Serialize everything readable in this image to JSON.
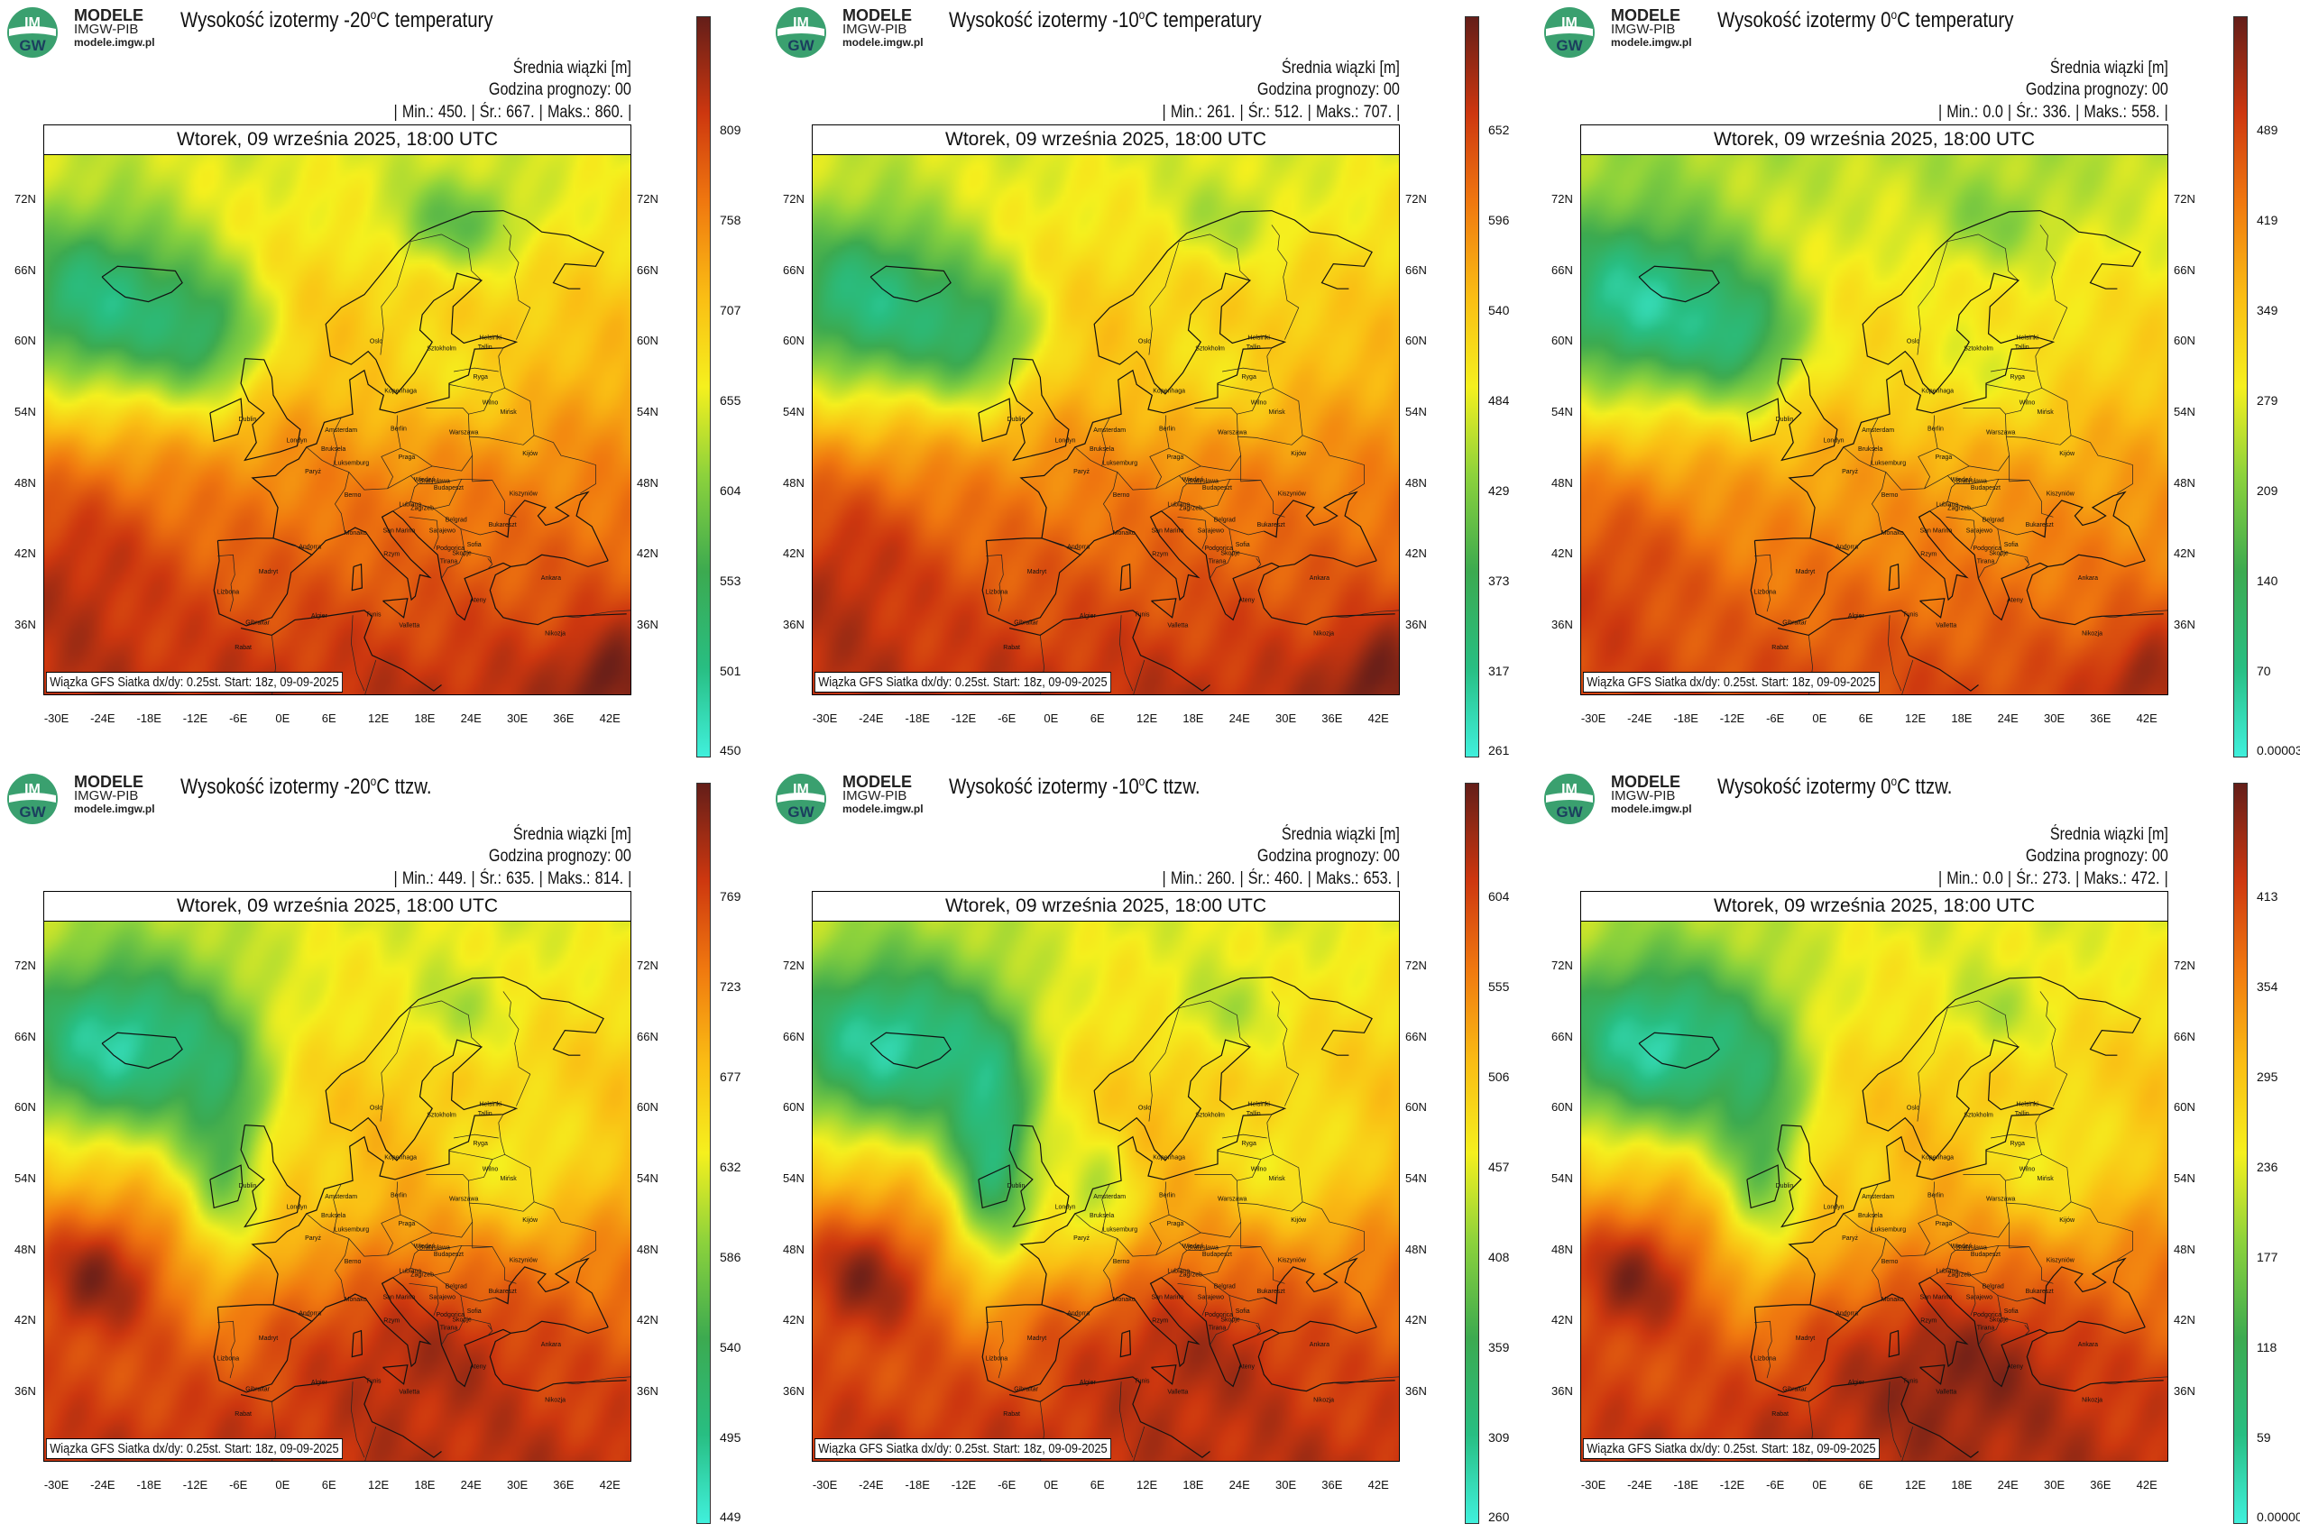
{
  "logo": {
    "line1": "MODELE",
    "line2": "IMGW-PIB",
    "line3": "modele.imgw.pl",
    "mark": "IM GW"
  },
  "common": {
    "info_line1": "Średnia wiązki [m]",
    "info_line2": "Godzina prognozy: 00",
    "date": "Wtorek, 09 września 2025, 18:00 UTC",
    "footer": "Wiązka GFS Siatka dx/dy: 0.25st. Start: 18z, 09-09-2025",
    "min_label": "Min.:",
    "mean_label": "Śr.:",
    "max_label": "Maks.:"
  },
  "lon_ticks": [
    "-30E",
    "-24E",
    "-18E",
    "-12E",
    "-6E",
    "0E",
    "6E",
    "12E",
    "18E",
    "24E",
    "30E",
    "36E",
    "42E"
  ],
  "lat_ticks": [
    "72N",
    "66N",
    "60N",
    "54N",
    "48N",
    "42N",
    "36N"
  ],
  "cities": [
    {
      "name": "Oslo",
      "lon": 10.7,
      "lat": 59.9
    },
    {
      "name": "Sztokholm",
      "lon": 18.1,
      "lat": 59.3
    },
    {
      "name": "Helsinki",
      "lon": 24.9,
      "lat": 60.2
    },
    {
      "name": "Tallin",
      "lon": 24.7,
      "lat": 59.4
    },
    {
      "name": "Ryga",
      "lon": 24.1,
      "lat": 56.9
    },
    {
      "name": "Kopenhaga",
      "lon": 12.6,
      "lat": 55.7
    },
    {
      "name": "Wilno",
      "lon": 25.3,
      "lat": 54.7
    },
    {
      "name": "Mińsk",
      "lon": 27.6,
      "lat": 53.9
    },
    {
      "name": "Dublin",
      "lon": -6.3,
      "lat": 53.3
    },
    {
      "name": "Londyn",
      "lon": -0.1,
      "lat": 51.5
    },
    {
      "name": "Amsterdam",
      "lon": 4.9,
      "lat": 52.4
    },
    {
      "name": "Berlin",
      "lon": 13.4,
      "lat": 52.5
    },
    {
      "name": "Warszawa",
      "lon": 21.0,
      "lat": 52.2
    },
    {
      "name": "Bruksela",
      "lon": 4.4,
      "lat": 50.8
    },
    {
      "name": "Luksemburg",
      "lon": 6.1,
      "lat": 49.6
    },
    {
      "name": "Praga",
      "lon": 14.4,
      "lat": 50.1
    },
    {
      "name": "Kijów",
      "lon": 30.5,
      "lat": 50.4
    },
    {
      "name": "Paryż",
      "lon": 2.3,
      "lat": 48.9
    },
    {
      "name": "Wiedeń",
      "lon": 16.4,
      "lat": 48.2
    },
    {
      "name": "Bratysława",
      "lon": 17.1,
      "lat": 48.1
    },
    {
      "name": "Budapeszt",
      "lon": 19.0,
      "lat": 47.5
    },
    {
      "name": "Kiszyniów",
      "lon": 28.8,
      "lat": 47.0
    },
    {
      "name": "Berno",
      "lon": 7.4,
      "lat": 46.9
    },
    {
      "name": "Lublana",
      "lon": 14.5,
      "lat": 46.1
    },
    {
      "name": "Zagrzeb",
      "lon": 16.0,
      "lat": 45.8
    },
    {
      "name": "Belgrad",
      "lon": 20.5,
      "lat": 44.8
    },
    {
      "name": "Bukareszt",
      "lon": 26.1,
      "lat": 44.4
    },
    {
      "name": "Sarajewo",
      "lon": 18.4,
      "lat": 43.9
    },
    {
      "name": "Sofia",
      "lon": 23.3,
      "lat": 42.7
    },
    {
      "name": "San Marino",
      "lon": 12.4,
      "lat": 43.9
    },
    {
      "name": "Andorra",
      "lon": 1.5,
      "lat": 42.5
    },
    {
      "name": "Monako",
      "lon": 7.4,
      "lat": 43.7
    },
    {
      "name": "Podgorica",
      "lon": 19.3,
      "lat": 42.4
    },
    {
      "name": "Skopje",
      "lon": 21.4,
      "lat": 42.0
    },
    {
      "name": "Tirana",
      "lon": 19.8,
      "lat": 41.3
    },
    {
      "name": "Rzym",
      "lon": 12.5,
      "lat": 41.9
    },
    {
      "name": "Madryt",
      "lon": -3.7,
      "lat": 40.4
    },
    {
      "name": "Ankara",
      "lon": 32.9,
      "lat": 39.9
    },
    {
      "name": "Lizbona",
      "lon": -9.1,
      "lat": 38.7
    },
    {
      "name": "Ateny",
      "lon": 23.7,
      "lat": 38.0
    },
    {
      "name": "Algier",
      "lon": 3.1,
      "lat": 36.7
    },
    {
      "name": "Tunis",
      "lon": 10.2,
      "lat": 36.8
    },
    {
      "name": "Gibraltar",
      "lon": -5.4,
      "lat": 36.1
    },
    {
      "name": "Valletta",
      "lon": 14.5,
      "lat": 35.9
    },
    {
      "name": "Nikozja",
      "lon": 33.4,
      "lat": 35.2
    },
    {
      "name": "Rabat",
      "lon": -6.8,
      "lat": 34.0
    }
  ],
  "panels": [
    {
      "title_pre": "Wysokość izotermy -20",
      "title_deg": "o",
      "title_post": "C temperatury",
      "min": "450.",
      "mean": "667.",
      "max": "860.",
      "colorbar_ticks": [
        "809",
        "758",
        "707",
        "655",
        "604",
        "553",
        "501",
        "450"
      ],
      "field": "t20"
    },
    {
      "title_pre": "Wysokość izotermy -10",
      "title_deg": "o",
      "title_post": "C temperatury",
      "min": "261.",
      "mean": "512.",
      "max": "707.",
      "colorbar_ticks": [
        "652",
        "596",
        "540",
        "484",
        "429",
        "373",
        "317",
        "261"
      ],
      "field": "t10"
    },
    {
      "title_pre": "Wysokość izotermy 0",
      "title_deg": "o",
      "title_post": "C temperatury",
      "min": "0.0",
      "mean": "336.",
      "max": "558.",
      "colorbar_ticks": [
        "489",
        "419",
        "349",
        "279",
        "209",
        "140",
        "70",
        "0.00003"
      ],
      "field": "t0"
    },
    {
      "title_pre": "Wysokość izotermy -20",
      "title_deg": "o",
      "title_post": "C ttzw.",
      "min": "449.",
      "mean": "635.",
      "max": "814.",
      "colorbar_ticks": [
        "769",
        "723",
        "677",
        "632",
        "586",
        "540",
        "495",
        "449"
      ],
      "field": "w20"
    },
    {
      "title_pre": "Wysokość izotermy -10",
      "title_deg": "o",
      "title_post": "C ttzw.",
      "min": "260.",
      "mean": "460.",
      "max": "653.",
      "colorbar_ticks": [
        "604",
        "555",
        "506",
        "457",
        "408",
        "359",
        "309",
        "260"
      ],
      "field": "w10"
    },
    {
      "title_pre": "Wysokość izotermy 0",
      "title_deg": "o",
      "title_post": "C ttzw.",
      "min": "0.0",
      "mean": "273.",
      "max": "472.",
      "colorbar_ticks": [
        "413",
        "354",
        "295",
        "236",
        "177",
        "118",
        "59",
        "0.00000"
      ],
      "field": "w0"
    }
  ],
  "chart_data": [
    {
      "type": "heatmap",
      "title": "Wysokość izotermy -20°C temperatury",
      "units": "m",
      "lon_range": [
        -30,
        45
      ],
      "lat_range": [
        30,
        75
      ],
      "value_range": [
        450,
        860
      ],
      "min": 450,
      "mean": 667,
      "max": 860
    },
    {
      "type": "heatmap",
      "title": "Wysokość izotermy -10°C temperatury",
      "units": "m",
      "lon_range": [
        -30,
        45
      ],
      "lat_range": [
        30,
        75
      ],
      "value_range": [
        261,
        707
      ],
      "min": 261,
      "mean": 512,
      "max": 707
    },
    {
      "type": "heatmap",
      "title": "Wysokość izotermy 0°C temperatury",
      "units": "m",
      "lon_range": [
        -30,
        45
      ],
      "lat_range": [
        30,
        75
      ],
      "value_range": [
        0,
        558
      ],
      "min": 0.0,
      "mean": 336,
      "max": 558
    },
    {
      "type": "heatmap",
      "title": "Wysokość izotermy -20°C ttzw.",
      "units": "m",
      "lon_range": [
        -30,
        45
      ],
      "lat_range": [
        30,
        75
      ],
      "value_range": [
        449,
        814
      ],
      "min": 449,
      "mean": 635,
      "max": 814
    },
    {
      "type": "heatmap",
      "title": "Wysokość izotermy -10°C ttzw.",
      "units": "m",
      "lon_range": [
        -30,
        45
      ],
      "lat_range": [
        30,
        75
      ],
      "value_range": [
        260,
        653
      ],
      "min": 260,
      "mean": 460,
      "max": 653
    },
    {
      "type": "heatmap",
      "title": "Wysokość izotermy 0°C ttzw.",
      "units": "m",
      "lon_range": [
        -30,
        45
      ],
      "lat_range": [
        30,
        75
      ],
      "value_range": [
        0,
        472
      ],
      "min": 0.0,
      "mean": 273,
      "max": 472
    }
  ]
}
